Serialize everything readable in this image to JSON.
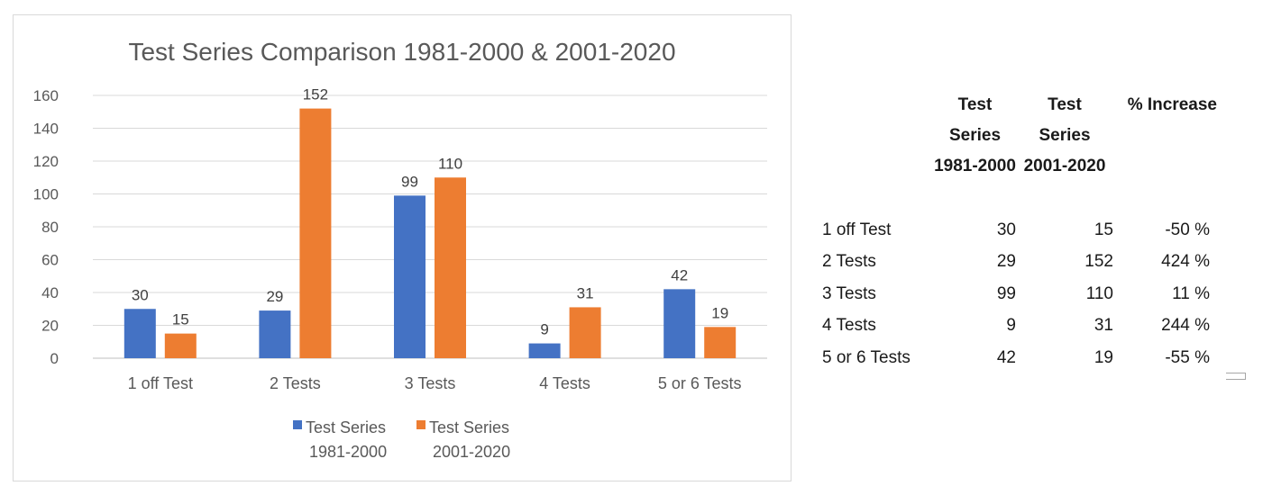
{
  "chart_data": {
    "type": "bar",
    "title": "Test Series Comparison 1981-2000 & 2001-2020",
    "categories": [
      "1 off Test",
      "2 Tests",
      "3 Tests",
      "4 Tests",
      "5 or 6 Tests"
    ],
    "series": [
      {
        "name": "Test Series 1981-2000",
        "legend_lines": [
          "Test Series",
          "1981-2000"
        ],
        "color": "#4472c4",
        "values": [
          30,
          29,
          99,
          9,
          42
        ]
      },
      {
        "name": "Test Series 2001-2020",
        "legend_lines": [
          "Test Series",
          "2001-2020"
        ],
        "color": "#ed7d31",
        "values": [
          15,
          152,
          110,
          31,
          19
        ]
      }
    ],
    "ylim": [
      0,
      160
    ],
    "yticks": [
      0,
      20,
      40,
      60,
      80,
      100,
      120,
      140,
      160
    ],
    "grid": true,
    "legend": "bottom",
    "data_labels": true
  },
  "table": {
    "headers": [
      {
        "lines": [
          "",
          "",
          ""
        ]
      },
      {
        "lines": [
          "Test",
          "Series",
          "1981-2000"
        ]
      },
      {
        "lines": [
          "Test",
          "Series",
          "2001-2020"
        ]
      },
      {
        "lines": [
          "% Increase",
          "",
          ""
        ]
      }
    ],
    "rows": [
      {
        "label": "1 off Test",
        "a": "30",
        "b": "15",
        "pct": "-50 %"
      },
      {
        "label": "2 Tests",
        "a": "29",
        "b": "152",
        "pct": "424 %"
      },
      {
        "label": "3 Tests",
        "a": "99",
        "b": "110",
        "pct": "11 %"
      },
      {
        "label": "4 Tests",
        "a": "9",
        "b": "31",
        "pct": "244 %"
      },
      {
        "label": "5 or 6 Tests",
        "a": "42",
        "b": "19",
        "pct": "-55 %"
      }
    ]
  }
}
